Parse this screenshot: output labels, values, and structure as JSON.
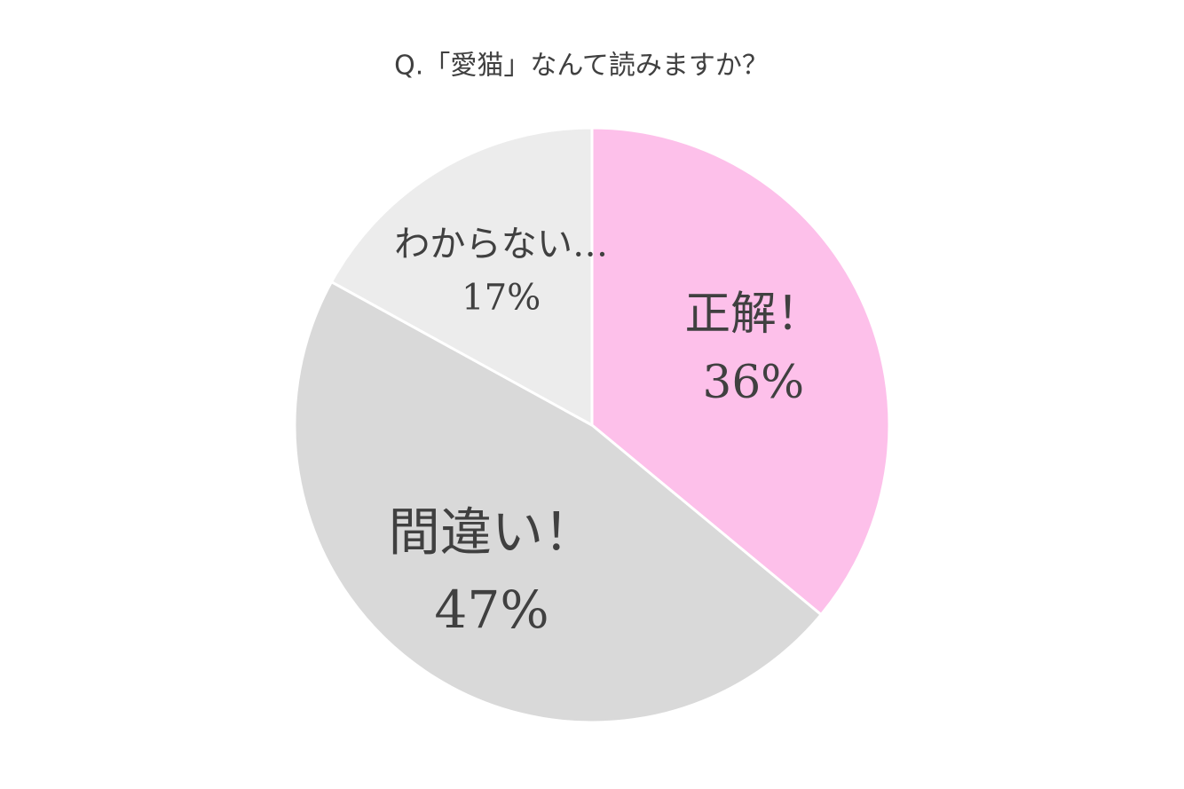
{
  "chart_data": {
    "type": "pie",
    "title": "Q.「愛猫」なんて読みますか？",
    "categories": [
      "正解！",
      "間違い！",
      "わからない…"
    ],
    "values": [
      36,
      47,
      17
    ],
    "value_labels": [
      "36%",
      "47%",
      "17%"
    ],
    "colors": [
      "#fdc0ea",
      "#d9d9d9",
      "#ececec"
    ]
  }
}
